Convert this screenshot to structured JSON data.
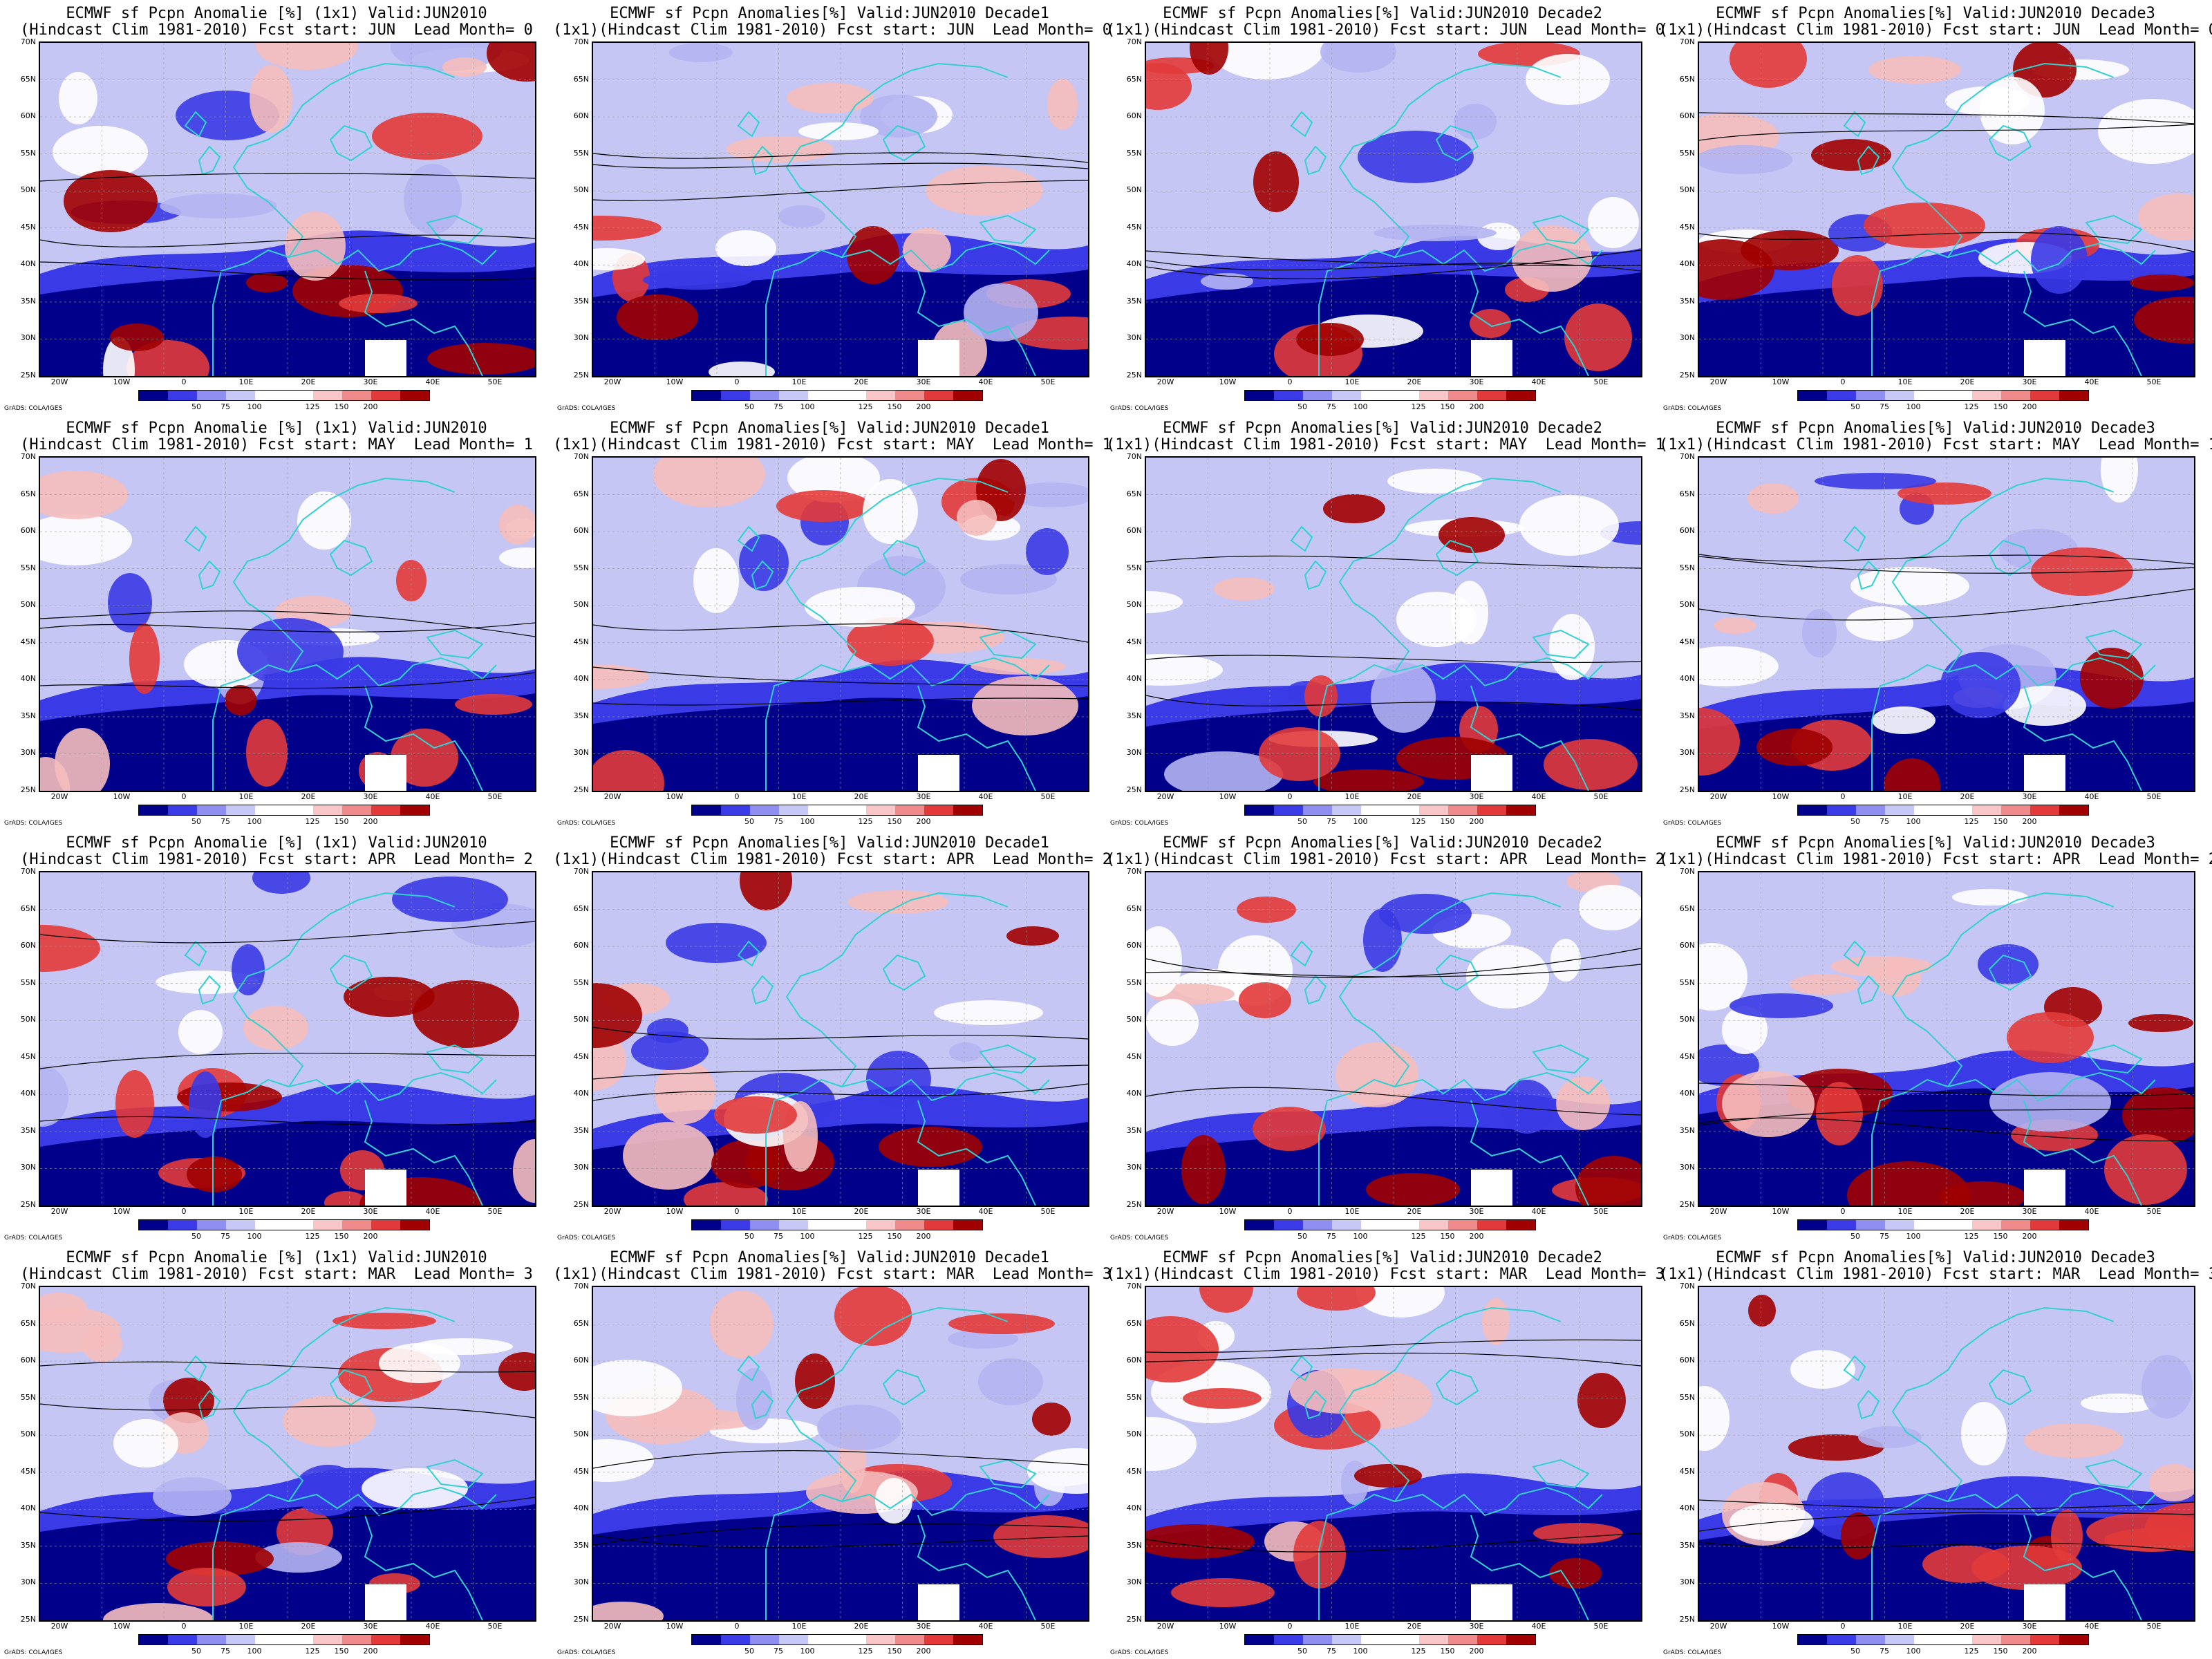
{
  "colorbar": {
    "labels": [
      "50",
      "75",
      "100",
      "125",
      "150",
      "200"
    ],
    "colors": [
      "#00008b",
      "#3a3ae6",
      "#8f8ff0",
      "#c8c8f6",
      "#ffffff",
      "#ffffff",
      "#f8c6c6",
      "#f08a8a",
      "#e23a3a",
      "#a00000"
    ]
  },
  "lat_labels": [
    "70N",
    "65N",
    "60N",
    "55N",
    "50N",
    "45N",
    "40N",
    "35N",
    "30N",
    "25N"
  ],
  "lon_labels": [
    "20W",
    "10W",
    "0",
    "10E",
    "20E",
    "30E",
    "40E",
    "50E"
  ],
  "credit": "GrADS: COLA/IGES",
  "colors": {
    "coast": "#33d0d0",
    "contour": "#000000",
    "deep_blue": "#00008b",
    "mid_blue": "#3a3ae6",
    "light_blue": "#b4b4f2",
    "light_red": "#f5bcbc",
    "mid_red": "#e23a3a",
    "deep_red": "#a00000"
  },
  "panels": [
    {
      "line1": "ECMWF sf Pcpn Anomalie [%] (1x1) Valid:JUN2010",
      "line2": "(Hindcast Clim 1981-2010) Fcst start: JUN  Lead Month= 0"
    },
    {
      "line1": "ECMWF sf Pcpn Anomalies[%] Valid:JUN2010 Decade1",
      "line2": "(1x1)(Hindcast Clim 1981-2010) Fcst start: JUN  Lead Month= 0"
    },
    {
      "line1": "ECMWF sf Pcpn Anomalies[%] Valid:JUN2010 Decade2",
      "line2": "(1x1)(Hindcast Clim 1981-2010) Fcst start: JUN  Lead Month= 0"
    },
    {
      "line1": "ECMWF sf Pcpn Anomalies[%] Valid:JUN2010 Decade3",
      "line2": "(1x1)(Hindcast Clim 1981-2010) Fcst start: JUN  Lead Month= 0"
    },
    {
      "line1": "ECMWF sf Pcpn Anomalie [%] (1x1) Valid:JUN2010",
      "line2": "(Hindcast Clim 1981-2010) Fcst start: MAY  Lead Month= 1"
    },
    {
      "line1": "ECMWF sf Pcpn Anomalies[%] Valid:JUN2010 Decade1",
      "line2": "(1x1)(Hindcast Clim 1981-2010) Fcst start: MAY  Lead Month= 1"
    },
    {
      "line1": "ECMWF sf Pcpn Anomalies[%] Valid:JUN2010 Decade2",
      "line2": "(1x1)(Hindcast Clim 1981-2010) Fcst start: MAY  Lead Month= 1"
    },
    {
      "line1": "ECMWF sf Pcpn Anomalies[%] Valid:JUN2010 Decade3",
      "line2": "(1x1)(Hindcast Clim 1981-2010) Fcst start: MAY  Lead Month= 1"
    },
    {
      "line1": "ECMWF sf Pcpn Anomalie [%] (1x1) Valid:JUN2010",
      "line2": "(Hindcast Clim 1981-2010) Fcst start: APR  Lead Month= 2"
    },
    {
      "line1": "ECMWF sf Pcpn Anomalies[%] Valid:JUN2010 Decade1",
      "line2": "(1x1)(Hindcast Clim 1981-2010) Fcst start: APR  Lead Month= 2"
    },
    {
      "line1": "ECMWF sf Pcpn Anomalies[%] Valid:JUN2010 Decade2",
      "line2": "(1x1)(Hindcast Clim 1981-2010) Fcst start: APR  Lead Month= 2"
    },
    {
      "line1": "ECMWF sf Pcpn Anomalies[%] Valid:JUN2010 Decade3",
      "line2": "(1x1)(Hindcast Clim 1981-2010) Fcst start: APR  Lead Month= 2"
    },
    {
      "line1": "ECMWF sf Pcpn Anomalie [%] (1x1) Valid:JUN2010",
      "line2": "(Hindcast Clim 1981-2010) Fcst start: MAR  Lead Month= 3"
    },
    {
      "line1": "ECMWF sf Pcpn Anomalies[%] Valid:JUN2010 Decade1",
      "line2": "(1x1)(Hindcast Clim 1981-2010) Fcst start: MAR  Lead Month= 3"
    },
    {
      "line1": "ECMWF sf Pcpn Anomalies[%] Valid:JUN2010 Decade2",
      "line2": "(1x1)(Hindcast Clim 1981-2010) Fcst start: MAR  Lead Month= 3"
    },
    {
      "line1": "ECMWF sf Pcpn Anomalies[%] Valid:JUN2010 Decade3",
      "line2": "(1x1)(Hindcast Clim 1981-2010) Fcst start: MAR  Lead Month= 3"
    }
  ]
}
